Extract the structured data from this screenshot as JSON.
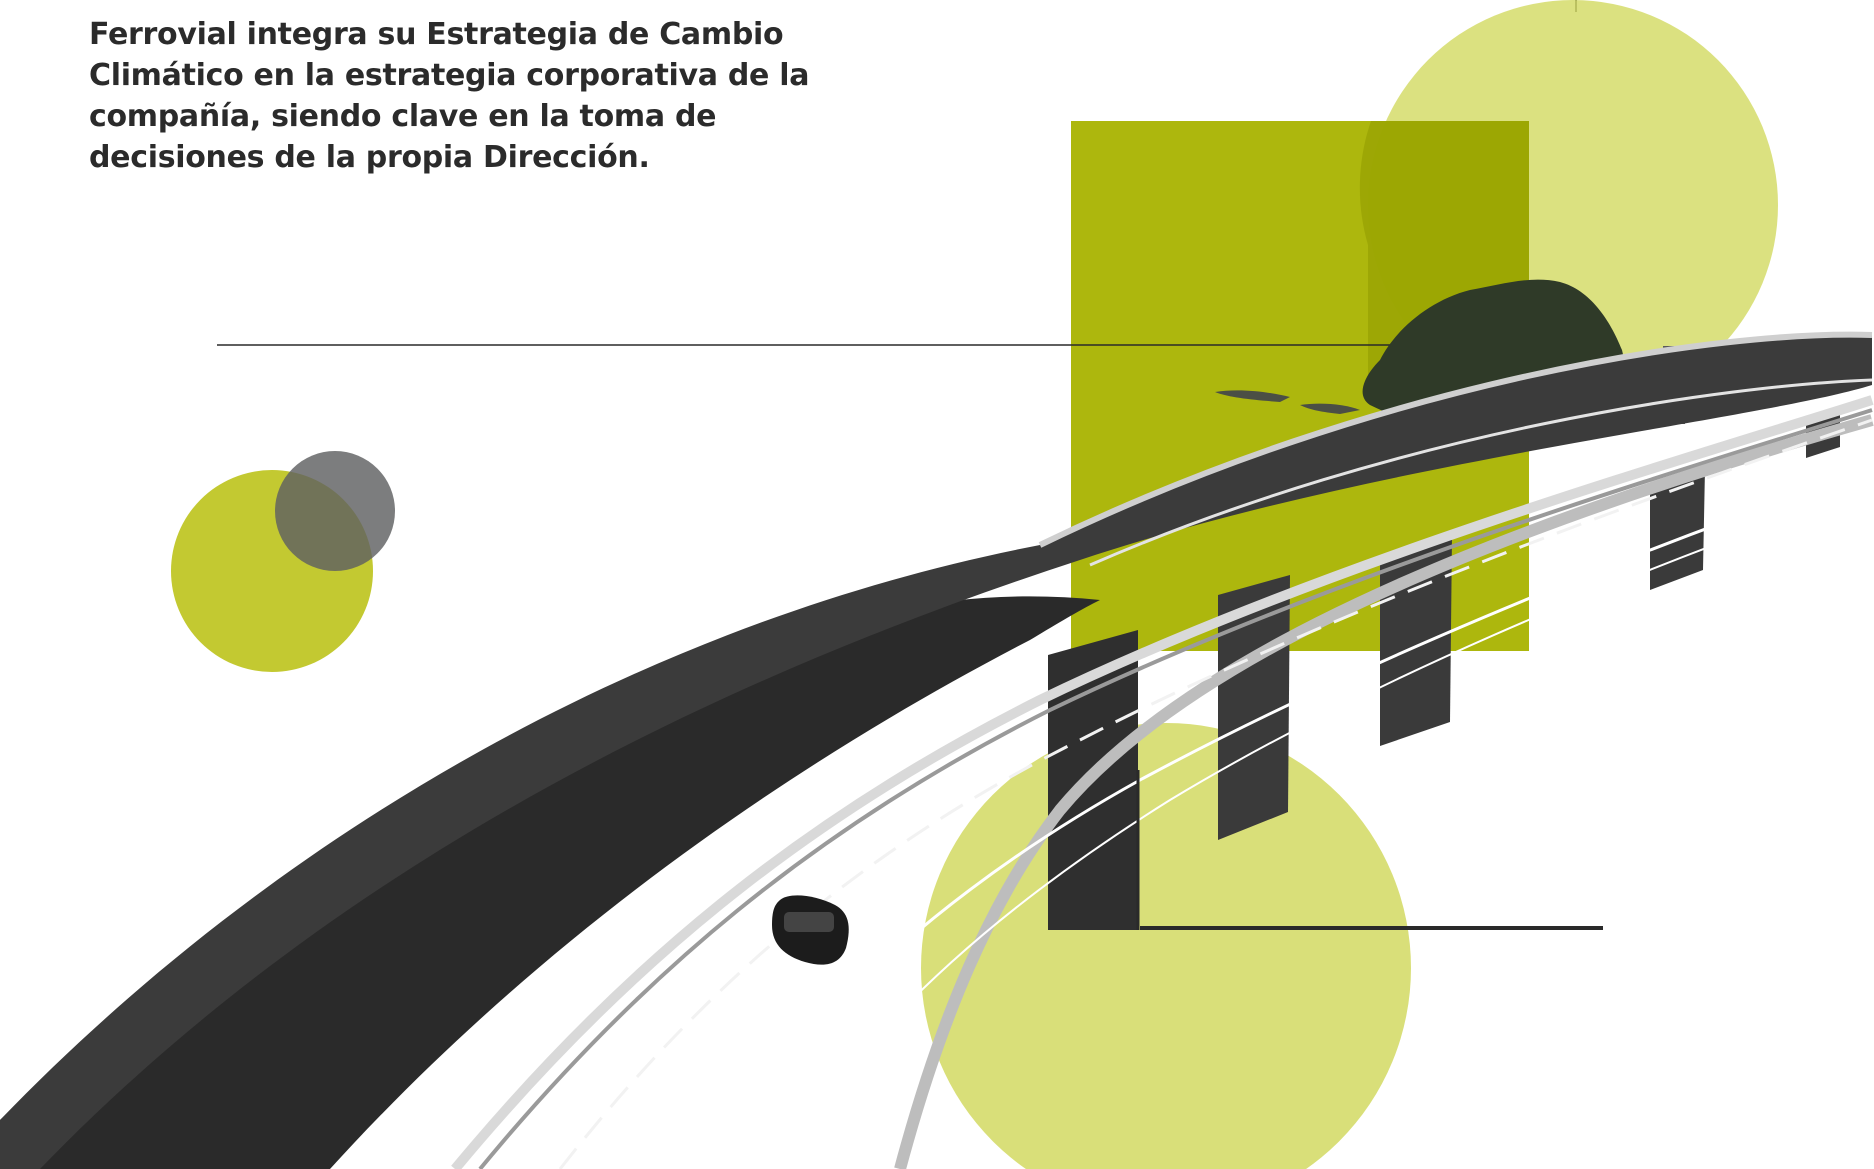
{
  "headline": {
    "text": "Ferrovial integra su Estrategia de Cambio Climático en la estrategia corporativa de la compañía, siendo clave en la toma de decisiones de la propia Dirección."
  },
  "colors": {
    "text": "#2b2b2b",
    "lime_light": "#d5dc6a",
    "lime_medium": "#c3c931",
    "lime_dark": "#a9b300",
    "grey_circle": "#5f6062",
    "road_dark": "#2a2a2a",
    "line": "#2a2a2a"
  },
  "icons": {
    "illustration": "highway-viaduct-collage"
  }
}
